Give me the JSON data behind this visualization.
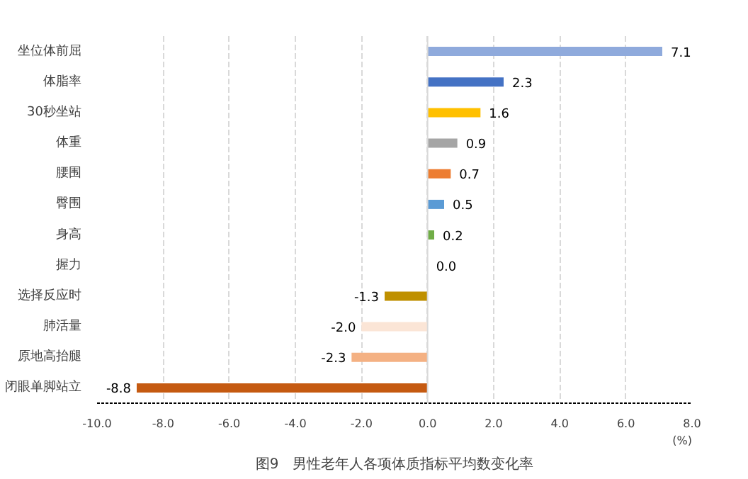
{
  "chart_data": {
    "type": "bar",
    "orientation": "horizontal",
    "title": "图9　男性老年人各项体质指标平均数变化率",
    "xlabel": "(%)",
    "categories": [
      "坐位体前屈",
      "体脂率",
      "30秒坐站",
      "体重",
      "腰围",
      "臀围",
      "身高",
      "握力",
      "选择反应时",
      "肺活量",
      "原地高抬腿",
      "闭眼单脚站立"
    ],
    "values": [
      7.1,
      2.3,
      1.6,
      0.9,
      0.7,
      0.5,
      0.2,
      0.0,
      -1.3,
      -2.0,
      -2.3,
      -8.8
    ],
    "colors": [
      "#8faadc",
      "#4472c4",
      "#ffc000",
      "#a5a5a5",
      "#ed7d31",
      "#5b9bd5",
      "#70ad47",
      "#548235",
      "#bf9000",
      "#fbe5d6",
      "#f4b183",
      "#c55a11"
    ],
    "value_labels": [
      "7.1",
      "2.3",
      "1.6",
      "0.9",
      "0.7",
      "0.5",
      "0.2",
      "0.0",
      "-1.3",
      "-2.0",
      "-2.3",
      "-8.8"
    ],
    "xlim": [
      -10,
      8
    ],
    "xticks": [
      {
        "value": -10,
        "label": "-10.0"
      },
      {
        "value": -8,
        "label": "-8.0"
      },
      {
        "value": -6,
        "label": "-6.0"
      },
      {
        "value": -4,
        "label": "-4.0"
      },
      {
        "value": -2,
        "label": "-2.0"
      },
      {
        "value": 0,
        "label": "0.0"
      },
      {
        "value": 2,
        "label": "2.0"
      },
      {
        "value": 4,
        "label": "4.0"
      },
      {
        "value": 6,
        "label": "6.0"
      },
      {
        "value": 8,
        "label": "8.0"
      }
    ],
    "grid": "x",
    "ref_lines": [
      {
        "axis": "x",
        "value": 0,
        "color": "#d9d9d9"
      }
    ]
  }
}
